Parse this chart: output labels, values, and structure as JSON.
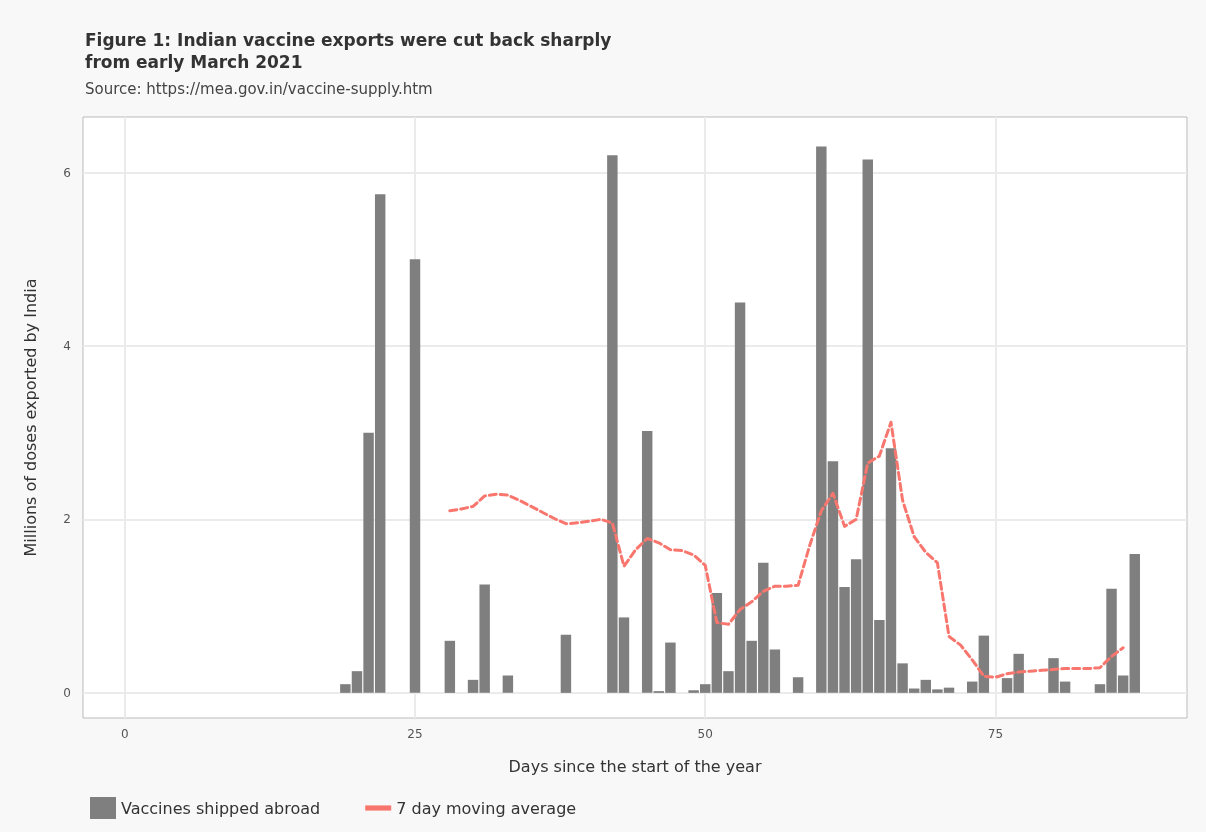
{
  "chart_data": {
    "type": "bar",
    "title": "Figure 1: Indian vaccine exports were cut back sharply\nfrom early March 2021",
    "subtitle": "Source: https://mea.gov.in/vaccine-supply.htm",
    "xlabel": "Days since the start of the year",
    "ylabel": "Millions of doses exported by India",
    "xlim": [
      -3.6,
      91.5
    ],
    "xticks": [
      0,
      25,
      50,
      75
    ],
    "ylim": [
      -0.29,
      6.64
    ],
    "yticks": [
      0,
      2,
      4,
      6
    ],
    "grid": true,
    "legend": "bottom left",
    "series": [
      {
        "name": "Vaccines shipped abroad",
        "color": "#7f7f7f",
        "x": [
          19,
          20,
          21,
          22,
          25,
          28,
          30,
          31,
          33,
          38,
          42,
          43,
          45,
          46,
          47,
          49,
          50,
          51,
          52,
          53,
          54,
          55,
          56,
          58,
          60,
          61,
          62,
          63,
          64,
          65,
          66,
          67,
          68,
          69,
          70,
          71,
          73,
          74,
          76,
          77,
          80,
          81,
          84,
          85,
          86,
          87
        ],
        "values": [
          0.1,
          0.25,
          3.0,
          5.75,
          5.0,
          0.6,
          0.15,
          1.25,
          0.2,
          0.67,
          6.2,
          0.87,
          3.02,
          0.02,
          0.58,
          0.03,
          0.1,
          1.15,
          0.25,
          4.5,
          0.6,
          1.5,
          0.5,
          0.18,
          6.3,
          2.67,
          1.22,
          1.54,
          6.15,
          0.84,
          2.82,
          0.34,
          0.05,
          0.15,
          0.04,
          0.06,
          0.13,
          0.66,
          0.17,
          0.45,
          0.4,
          0.13,
          0.1,
          1.2,
          0.2,
          1.6
        ]
      },
      {
        "name": "7 day moving average",
        "type": "line",
        "color": "#f8766d",
        "line_style": "dashed",
        "marker": "none",
        "x": [
          28,
          29,
          30,
          31,
          32,
          33,
          34,
          35,
          36,
          37,
          38,
          39,
          40,
          41,
          42,
          43,
          44,
          45,
          46,
          47,
          48,
          49,
          50,
          51,
          52,
          53,
          54,
          55,
          56,
          57,
          58,
          59,
          60,
          61,
          62,
          63,
          64,
          65,
          66,
          67,
          68,
          69,
          70,
          71,
          72,
          73,
          74,
          75,
          76,
          77,
          78,
          79,
          80,
          81,
          82,
          83,
          84,
          85,
          86
        ],
        "values": [
          2.1,
          2.12,
          2.15,
          2.27,
          2.29,
          2.28,
          2.22,
          2.15,
          2.08,
          2.01,
          1.95,
          1.96,
          1.98,
          2.0,
          1.96,
          1.46,
          1.65,
          1.78,
          1.73,
          1.65,
          1.64,
          1.59,
          1.47,
          0.81,
          0.79,
          0.96,
          1.05,
          1.17,
          1.23,
          1.23,
          1.24,
          1.7,
          2.1,
          2.3,
          1.92,
          2.0,
          2.65,
          2.73,
          3.12,
          2.22,
          1.8,
          1.62,
          1.5,
          0.65,
          0.55,
          0.38,
          0.19,
          0.18,
          0.22,
          0.24,
          0.25,
          0.26,
          0.27,
          0.28,
          0.28,
          0.28,
          0.29,
          0.42,
          0.52
        ]
      }
    ]
  }
}
